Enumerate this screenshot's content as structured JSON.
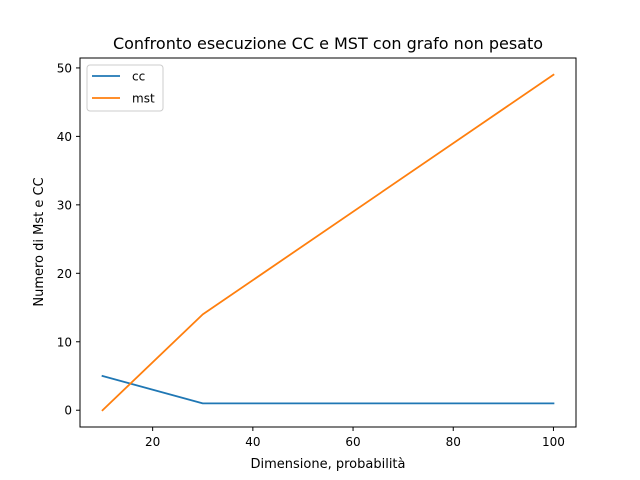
{
  "chart_data": {
    "type": "line",
    "title": "Confronto esecuzione CC e MST con grafo non pesato",
    "xlabel": "Dimensione, probabilità",
    "ylabel": "Numero di Mst e CC",
    "xlim": [
      5.5,
      104.5
    ],
    "ylim": [
      -2.45,
      51.45
    ],
    "xticks": [
      20,
      40,
      60,
      80,
      100
    ],
    "yticks": [
      0,
      10,
      20,
      30,
      40,
      50
    ],
    "grid": false,
    "legend_position": "top-left",
    "series": [
      {
        "name": "cc",
        "color": "#1f77b4",
        "x": [
          10,
          30,
          100
        ],
        "y": [
          5,
          1,
          1
        ]
      },
      {
        "name": "mst",
        "color": "#ff7f0e",
        "x": [
          10,
          30,
          100
        ],
        "y": [
          0,
          14,
          49
        ]
      }
    ]
  }
}
